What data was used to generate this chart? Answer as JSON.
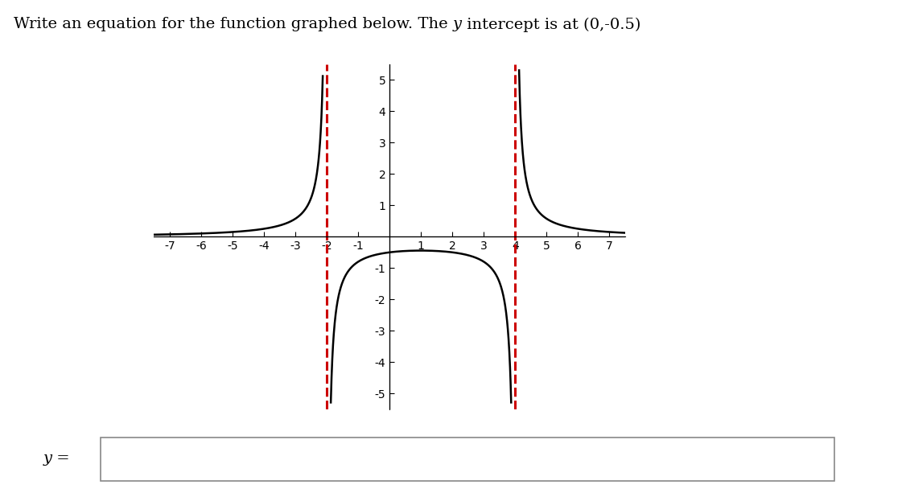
{
  "xlim": [
    -7.5,
    7.5
  ],
  "ylim": [
    -5.5,
    5.5
  ],
  "xticks": [
    -7,
    -6,
    -5,
    -4,
    -3,
    -2,
    -1,
    1,
    2,
    3,
    4,
    5,
    6,
    7
  ],
  "yticks": [
    -5,
    -4,
    -3,
    -2,
    -1,
    1,
    2,
    3,
    4,
    5
  ],
  "asymptotes": [
    -2,
    4
  ],
  "asymptote_color": "#cc0000",
  "curve_color": "#000000",
  "curve_linewidth": 1.8,
  "asymptote_linewidth": 2.2,
  "background_color": "#ffffff",
  "numerator": 4.0,
  "va1": -2,
  "va2": 4,
  "title_prefix": "Write an equation for the function graphed below. The ",
  "title_italic": "y",
  "title_suffix": " intercept is at (0,-0.5)",
  "title_fontsize": 14,
  "axis_tick_fontsize": 11
}
